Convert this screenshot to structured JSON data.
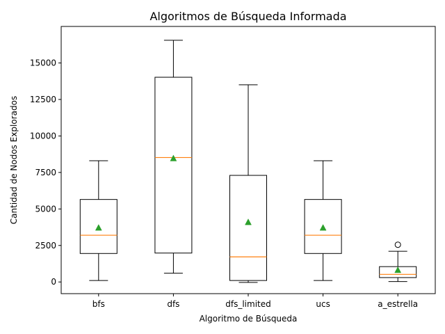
{
  "chart_data": {
    "type": "boxplot",
    "title": "Algoritmos de Búsqueda Informada",
    "xlabel": "Algoritmo de Búsqueda",
    "ylabel": "Cantidad de Nodos Explorados",
    "ylim": [
      -800,
      17500
    ],
    "yticks": [
      0,
      2500,
      5000,
      7500,
      10000,
      12500,
      15000
    ],
    "ytick_labels": [
      "0",
      "2500",
      "5000",
      "7500",
      "10000",
      "12500",
      "15000"
    ],
    "grid": false,
    "categories": [
      "bfs",
      "dfs",
      "dfs_limited",
      "ucs",
      "a_estrella"
    ],
    "boxes": [
      {
        "label": "bfs",
        "whisker_low": 100,
        "q1": 1950,
        "median": 3200,
        "q3": 5650,
        "whisker_high": 8300,
        "mean": 3700,
        "outliers": []
      },
      {
        "label": "dfs",
        "whisker_low": 600,
        "q1": 1980,
        "median": 8520,
        "q3": 14020,
        "whisker_high": 16550,
        "mean": 8450,
        "outliers": []
      },
      {
        "label": "dfs_limited",
        "whisker_low": -30,
        "q1": 100,
        "median": 1720,
        "q3": 7300,
        "whisker_high": 13500,
        "mean": 4080,
        "outliers": []
      },
      {
        "label": "ucs",
        "whisker_low": 100,
        "q1": 1950,
        "median": 3200,
        "q3": 5650,
        "whisker_high": 8300,
        "mean": 3700,
        "outliers": []
      },
      {
        "label": "a_estrella",
        "whisker_low": 30,
        "q1": 300,
        "median": 520,
        "q3": 1050,
        "whisker_high": 2100,
        "mean": 800,
        "outliers": [
          2550
        ]
      }
    ],
    "colors": {
      "box": "#000000",
      "median": "#ff7f0e",
      "mean": "#2ca02c",
      "outlier": "#000000"
    }
  }
}
